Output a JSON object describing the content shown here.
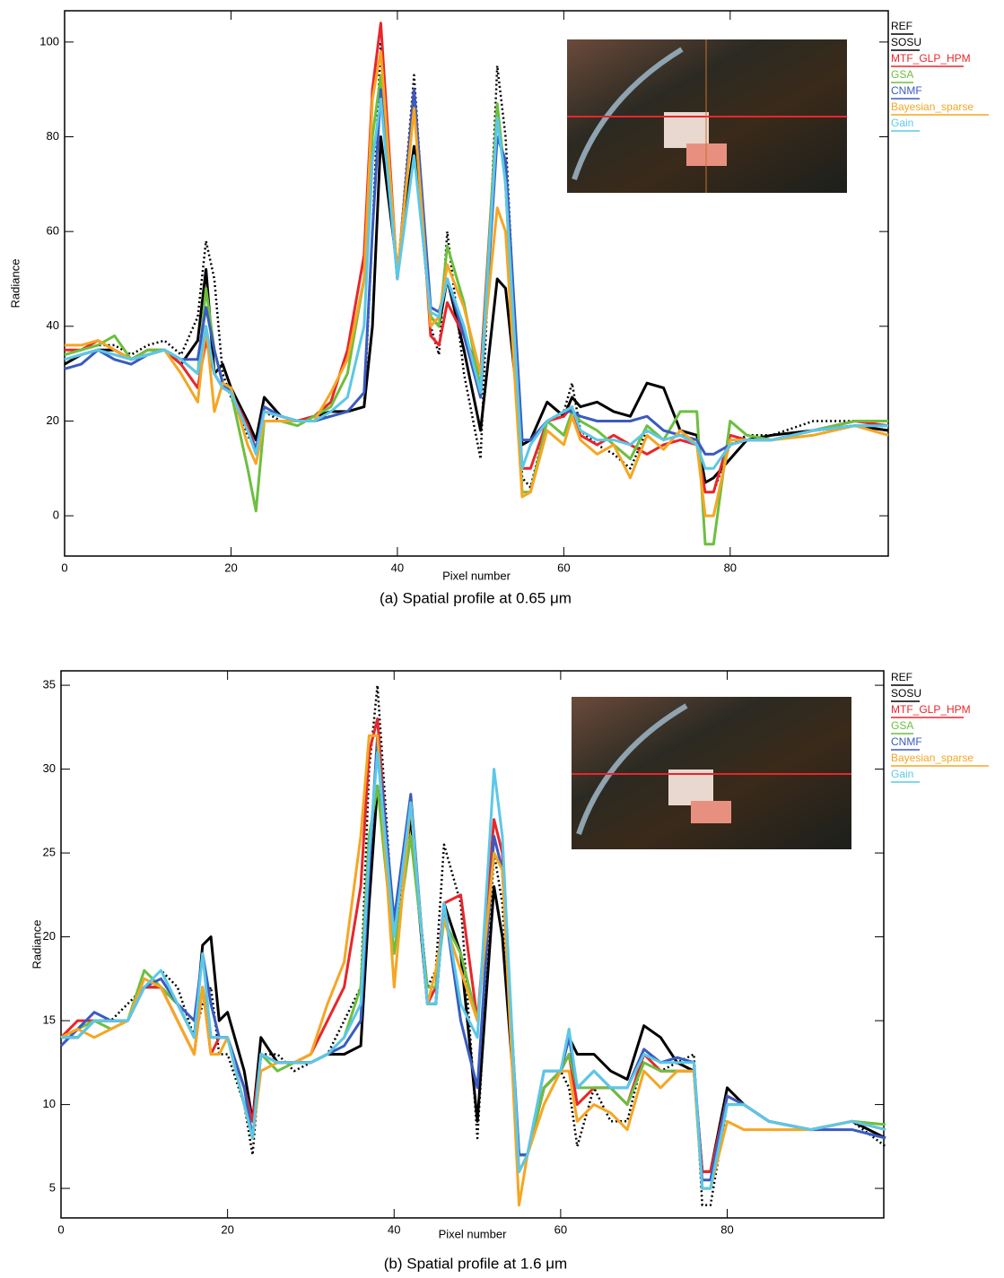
{
  "chart_data": [
    {
      "type": "line",
      "xlabel": "Pixel number",
      "ylabel": "Radiance",
      "caption": "(a) Spatial profile at 0.65 μm",
      "xlim": [
        0,
        99
      ],
      "xticks": [
        0,
        20,
        40,
        60,
        80
      ],
      "ylim": [
        -8.5,
        106.6
      ],
      "yticks": [
        0,
        20,
        40,
        60,
        80,
        100
      ],
      "x": [
        0,
        2,
        4,
        6,
        8,
        10,
        12,
        14,
        16,
        17,
        18,
        19,
        20,
        22,
        23,
        24,
        26,
        28,
        30,
        32,
        34,
        36,
        37,
        38,
        40,
        42,
        44,
        45,
        46,
        48,
        50,
        52,
        53,
        55,
        56,
        58,
        60,
        61,
        62,
        64,
        66,
        68,
        70,
        72,
        74,
        76,
        77,
        78,
        80,
        82,
        85,
        90,
        95,
        99
      ],
      "series": [
        {
          "name": "REF",
          "color": "#000000",
          "line_style": "solid",
          "values": [
            32,
            34,
            35,
            35,
            33,
            34,
            35,
            32,
            37,
            52,
            30,
            32,
            27,
            20,
            16,
            25,
            21,
            20,
            21,
            22,
            22,
            23,
            40,
            80,
            52,
            78,
            42,
            40,
            50,
            35,
            18,
            50,
            48,
            15,
            16,
            24,
            21,
            25,
            23,
            24,
            22,
            21,
            28,
            27,
            18,
            17,
            7,
            8,
            12,
            16,
            17,
            18,
            19,
            18
          ]
        },
        {
          "name": "SOSU",
          "color": "#000000",
          "line_style": "dotted",
          "values": [
            34,
            35,
            36,
            36,
            34,
            36,
            37,
            34,
            42,
            58,
            50,
            30,
            25,
            17,
            14,
            22,
            20,
            20,
            21,
            21,
            22,
            23,
            60,
            100,
            50,
            93,
            40,
            34,
            60,
            30,
            12,
            95,
            80,
            8,
            6,
            20,
            22,
            28,
            18,
            15,
            13,
            10,
            18,
            16,
            17,
            15,
            5,
            5,
            15,
            17,
            17,
            20,
            20,
            19
          ]
        },
        {
          "name": "MTF_GLP_HPM",
          "color": "#e8262b",
          "line_style": "solid",
          "values": [
            35,
            35,
            37,
            35,
            33,
            35,
            35,
            32,
            27,
            37,
            30,
            27,
            26,
            19,
            14,
            22,
            21,
            20,
            21,
            24,
            35,
            55,
            90,
            104,
            50,
            90,
            38,
            36,
            45,
            38,
            30,
            86,
            70,
            10,
            10,
            20,
            21,
            23,
            17,
            15,
            17,
            15,
            13,
            15,
            16,
            15,
            5,
            5,
            17,
            16,
            16,
            18,
            20,
            19
          ]
        },
        {
          "name": "GSA",
          "color": "#6cbf3f",
          "line_style": "solid",
          "values": [
            34,
            35,
            36,
            38,
            33,
            35,
            35,
            33,
            30,
            48,
            35,
            28,
            26,
            10,
            1,
            20,
            20,
            19,
            21,
            23,
            30,
            50,
            80,
            93,
            50,
            88,
            42,
            40,
            57,
            45,
            27,
            87,
            70,
            5,
            5,
            20,
            17,
            22,
            20,
            18,
            15,
            12,
            19,
            16,
            22,
            22,
            -6,
            -6,
            20,
            17,
            16,
            18,
            20,
            20
          ]
        },
        {
          "name": "CNMF",
          "color": "#3a5bbf",
          "line_style": "solid",
          "values": [
            31,
            32,
            35,
            33,
            32,
            34,
            35,
            33,
            33,
            44,
            35,
            28,
            26,
            18,
            14,
            23,
            21,
            20,
            20,
            21,
            22,
            26,
            60,
            90,
            50,
            90,
            44,
            43,
            50,
            38,
            25,
            80,
            75,
            16,
            16,
            20,
            22,
            22,
            21,
            20,
            20,
            20,
            21,
            18,
            17,
            16,
            13,
            13,
            15,
            16,
            16,
            18,
            19,
            19
          ]
        },
        {
          "name": "Bayesian_sparse",
          "color": "#f5a623",
          "line_style": "solid",
          "values": [
            36,
            36,
            37,
            35,
            33,
            34,
            35,
            30,
            24,
            40,
            22,
            28,
            27,
            15,
            11,
            20,
            20,
            20,
            20,
            26,
            33,
            50,
            88,
            98,
            51,
            86,
            40,
            42,
            53,
            44,
            30,
            65,
            60,
            4,
            5,
            18,
            15,
            21,
            16,
            13,
            15,
            8,
            17,
            14,
            18,
            15,
            0,
            0,
            16,
            16,
            16,
            17,
            19,
            17
          ]
        },
        {
          "name": "Gain",
          "color": "#5bc8e8",
          "line_style": "solid",
          "values": [
            33,
            34,
            35,
            34,
            33,
            34,
            35,
            33,
            30,
            40,
            30,
            27,
            26,
            18,
            13,
            22,
            21,
            20,
            20,
            22,
            25,
            40,
            75,
            88,
            50,
            76,
            43,
            42,
            50,
            40,
            26,
            84,
            70,
            10,
            15,
            20,
            22,
            23,
            18,
            16,
            16,
            15,
            18,
            16,
            17,
            15,
            10,
            10,
            15,
            16,
            16,
            18,
            19,
            19
          ]
        }
      ]
    },
    {
      "type": "line",
      "xlabel": "Pixel number",
      "ylabel": "Radiance",
      "caption": "(b) Spatial profile at 1.6 μm",
      "xlim": [
        0,
        98.8
      ],
      "xticks": [
        0,
        20,
        40,
        60,
        80
      ],
      "ylim": [
        3.24,
        35.86
      ],
      "yticks": [
        5,
        10,
        15,
        20,
        25,
        30,
        35
      ],
      "x": [
        0,
        2,
        4,
        6,
        8,
        10,
        12,
        14,
        16,
        17,
        18,
        19,
        20,
        22,
        23,
        24,
        26,
        28,
        30,
        32,
        34,
        36,
        37,
        38,
        40,
        42,
        44,
        45,
        46,
        48,
        50,
        52,
        53,
        55,
        56,
        58,
        60,
        61,
        62,
        64,
        66,
        68,
        70,
        72,
        74,
        76,
        77,
        78,
        80,
        82,
        85,
        90,
        95,
        99
      ],
      "series": [
        {
          "name": "REF",
          "color": "#000000",
          "line_style": "solid",
          "values": [
            14,
            14,
            15,
            15,
            15,
            17,
            17,
            16,
            14,
            19.5,
            20,
            15,
            15.5,
            12,
            9,
            14,
            12.5,
            12.5,
            12.5,
            13,
            13,
            13.5,
            22,
            29,
            21,
            27,
            16,
            16,
            22,
            19,
            9,
            23,
            20,
            7,
            7,
            11,
            12,
            14,
            13,
            13,
            12,
            11.5,
            14.7,
            14,
            12.5,
            12,
            6,
            6,
            11,
            10,
            9,
            8.5,
            9,
            8
          ]
        },
        {
          "name": "SOSU",
          "color": "#000000",
          "line_style": "dotted",
          "values": [
            14,
            15,
            15,
            15,
            16,
            17,
            18,
            17,
            14,
            16,
            17,
            13,
            13,
            10,
            7,
            13,
            13,
            12,
            12.5,
            13,
            15,
            17,
            30,
            35,
            20,
            27,
            17,
            18,
            25.5,
            22,
            8,
            25,
            22,
            6,
            7,
            10,
            12,
            11,
            7.5,
            11,
            9,
            9,
            13,
            12,
            12.5,
            13,
            4,
            4,
            10,
            10,
            9,
            8.5,
            9,
            7.5
          ]
        },
        {
          "name": "MTF_GLP_HPM",
          "color": "#e8262b",
          "line_style": "solid",
          "values": [
            14,
            15,
            15,
            15,
            15,
            17,
            17,
            15,
            13,
            17,
            13,
            14,
            14,
            11,
            9,
            13,
            12.5,
            12.5,
            13,
            15,
            17,
            23,
            31,
            33,
            20,
            28,
            16,
            17,
            22,
            22.5,
            15,
            27,
            25,
            6,
            7,
            11,
            12,
            13,
            10,
            11,
            11,
            10,
            13,
            12,
            12,
            12,
            6,
            6,
            10.5,
            10,
            9,
            8.5,
            9,
            8.5
          ]
        },
        {
          "name": "GSA",
          "color": "#6cbf3f",
          "line_style": "solid",
          "values": [
            14,
            14.5,
            15,
            14.5,
            15,
            18,
            17,
            16,
            14,
            17,
            14,
            14,
            14,
            10,
            8,
            13,
            12,
            12.5,
            12.5,
            13,
            14,
            17,
            26,
            29,
            19,
            26,
            17,
            17,
            21,
            19,
            15,
            25,
            24,
            7,
            7,
            11,
            12,
            13,
            11,
            11,
            11,
            10,
            12.5,
            12,
            12,
            12,
            5,
            5,
            10,
            10,
            9,
            8.5,
            9,
            8.8
          ]
        },
        {
          "name": "CNMF",
          "color": "#3a5bbf",
          "line_style": "solid",
          "values": [
            13.5,
            14.5,
            15.5,
            15,
            15,
            17,
            17.5,
            16,
            15,
            19,
            16,
            14,
            14,
            11,
            8,
            13,
            12.5,
            12.5,
            12.5,
            13,
            13.5,
            15,
            24,
            32,
            21,
            28.5,
            16,
            16,
            22,
            15,
            11,
            26,
            24,
            7,
            7,
            12,
            12,
            14,
            11,
            12,
            11,
            11,
            13.3,
            12.5,
            12.8,
            12.5,
            5.5,
            5.5,
            10.5,
            10,
            9,
            8.5,
            8.5,
            8
          ]
        },
        {
          "name": "Bayesian_sparse",
          "color": "#f5a623",
          "line_style": "solid",
          "values": [
            14,
            14.5,
            14,
            14.5,
            15,
            17.5,
            17,
            15,
            13,
            17,
            13,
            13,
            14,
            10,
            8,
            12,
            12.5,
            12.5,
            13,
            16,
            18.5,
            26,
            32,
            32,
            17,
            28,
            16,
            18,
            21,
            18,
            15,
            25,
            24,
            4,
            7,
            10,
            12,
            12,
            9,
            10,
            9.5,
            8.5,
            12,
            11,
            12,
            12,
            5,
            5,
            9,
            8.5,
            8.5,
            8.5,
            9,
            8.5
          ]
        },
        {
          "name": "Gain",
          "color": "#5bc8e8",
          "line_style": "solid",
          "values": [
            14,
            14,
            15,
            15,
            15,
            17,
            18,
            16,
            14,
            19,
            14,
            14,
            14,
            10,
            8,
            13,
            12.5,
            12.5,
            12.5,
            13,
            14,
            16,
            25,
            31,
            20,
            28,
            16,
            16,
            22,
            16,
            14,
            30,
            26,
            6,
            7,
            12,
            12,
            14.5,
            11,
            12,
            11,
            11,
            13,
            12.5,
            12.5,
            12.5,
            5,
            5,
            10,
            10,
            9,
            8.5,
            9,
            8.5
          ]
        }
      ]
    }
  ]
}
